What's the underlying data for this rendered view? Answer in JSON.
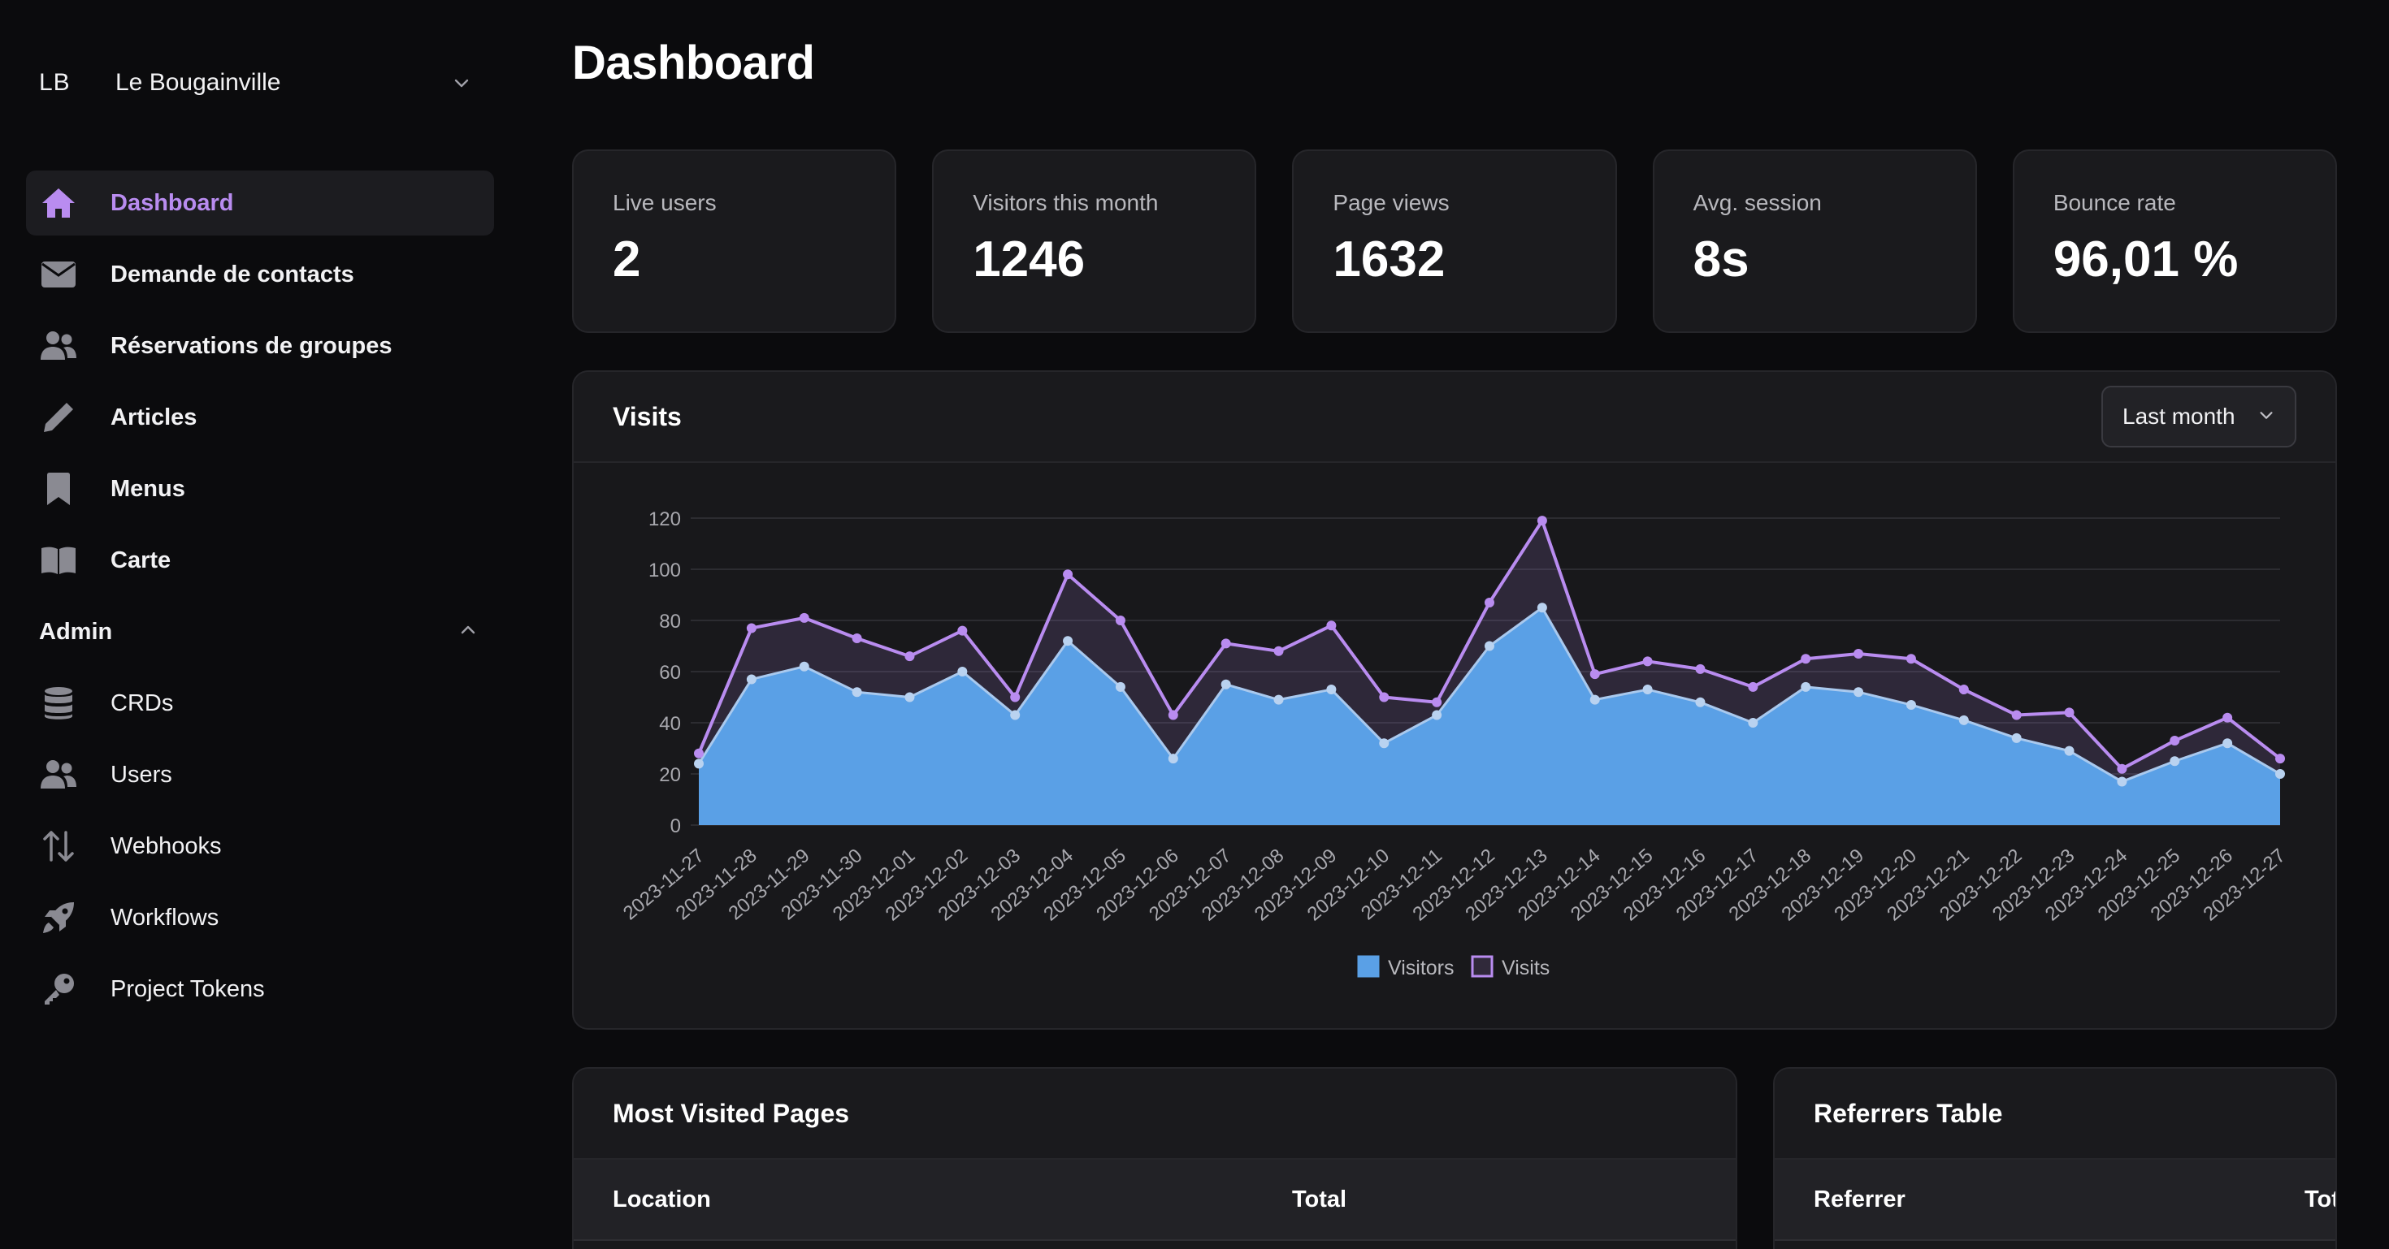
{
  "workspace": {
    "initials": "LB",
    "name": "Le Bougainville"
  },
  "nav": [
    {
      "label": "Dashboard",
      "icon": "home-icon",
      "active": true
    },
    {
      "label": "Demande de contacts",
      "icon": "envelope-icon"
    },
    {
      "label": "Réservations de groupes",
      "icon": "users-icon"
    },
    {
      "label": "Articles",
      "icon": "pen-icon"
    },
    {
      "label": "Menus",
      "icon": "bookmark-icon"
    },
    {
      "label": "Carte",
      "icon": "book-open-icon"
    }
  ],
  "admin": {
    "label": "Admin",
    "items": [
      {
        "label": "CRDs",
        "icon": "database-icon"
      },
      {
        "label": "Users",
        "icon": "users-icon"
      },
      {
        "label": "Webhooks",
        "icon": "arrows-up-down-icon"
      },
      {
        "label": "Workflows",
        "icon": "rocket-icon"
      },
      {
        "label": "Project Tokens",
        "icon": "key-icon"
      }
    ]
  },
  "page": {
    "title": "Dashboard"
  },
  "stats": [
    {
      "label": "Live users",
      "value": "2"
    },
    {
      "label": "Visitors this month",
      "value": "1246"
    },
    {
      "label": "Page views",
      "value": "1632"
    },
    {
      "label": "Avg. session",
      "value": "8s"
    },
    {
      "label": "Bounce rate",
      "value": "96,01 %"
    }
  ],
  "visits": {
    "title": "Visits",
    "range": "Last month"
  },
  "chart_data": {
    "type": "area",
    "title": "",
    "xlabel": "",
    "ylabel": "",
    "ylim": [
      0,
      120
    ],
    "yticks": [
      0,
      20,
      40,
      60,
      80,
      100,
      120
    ],
    "grid": true,
    "legend": "bottom",
    "x": [
      "2023-11-27",
      "2023-11-28",
      "2023-11-29",
      "2023-11-30",
      "2023-12-01",
      "2023-12-02",
      "2023-12-03",
      "2023-12-04",
      "2023-12-05",
      "2023-12-06",
      "2023-12-07",
      "2023-12-08",
      "2023-12-09",
      "2023-12-10",
      "2023-12-11",
      "2023-12-12",
      "2023-12-13",
      "2023-12-14",
      "2023-12-15",
      "2023-12-16",
      "2023-12-17",
      "2023-12-18",
      "2023-12-19",
      "2023-12-20",
      "2023-12-21",
      "2023-12-22",
      "2023-12-23",
      "2023-12-24",
      "2023-12-25",
      "2023-12-26",
      "2023-12-27"
    ],
    "series": [
      {
        "name": "Visitors",
        "color": "#5aa0e6",
        "values": [
          24,
          57,
          62,
          52,
          50,
          60,
          43,
          72,
          54,
          26,
          55,
          49,
          53,
          32,
          43,
          70,
          85,
          49,
          53,
          48,
          40,
          54,
          52,
          47,
          41,
          34,
          29,
          17,
          25,
          32,
          20
        ]
      },
      {
        "name": "Visits",
        "color": "#b98cf0",
        "values": [
          28,
          77,
          81,
          73,
          66,
          76,
          50,
          98,
          80,
          43,
          71,
          68,
          78,
          50,
          48,
          87,
          119,
          59,
          64,
          61,
          54,
          65,
          67,
          65,
          53,
          43,
          44,
          22,
          33,
          42,
          26
        ]
      }
    ]
  },
  "most_visited": {
    "title": "Most Visited Pages",
    "columns": [
      "Location",
      "Total"
    ]
  },
  "referrers": {
    "title": "Referrers Table",
    "columns": [
      "Referrer",
      "Total"
    ]
  }
}
